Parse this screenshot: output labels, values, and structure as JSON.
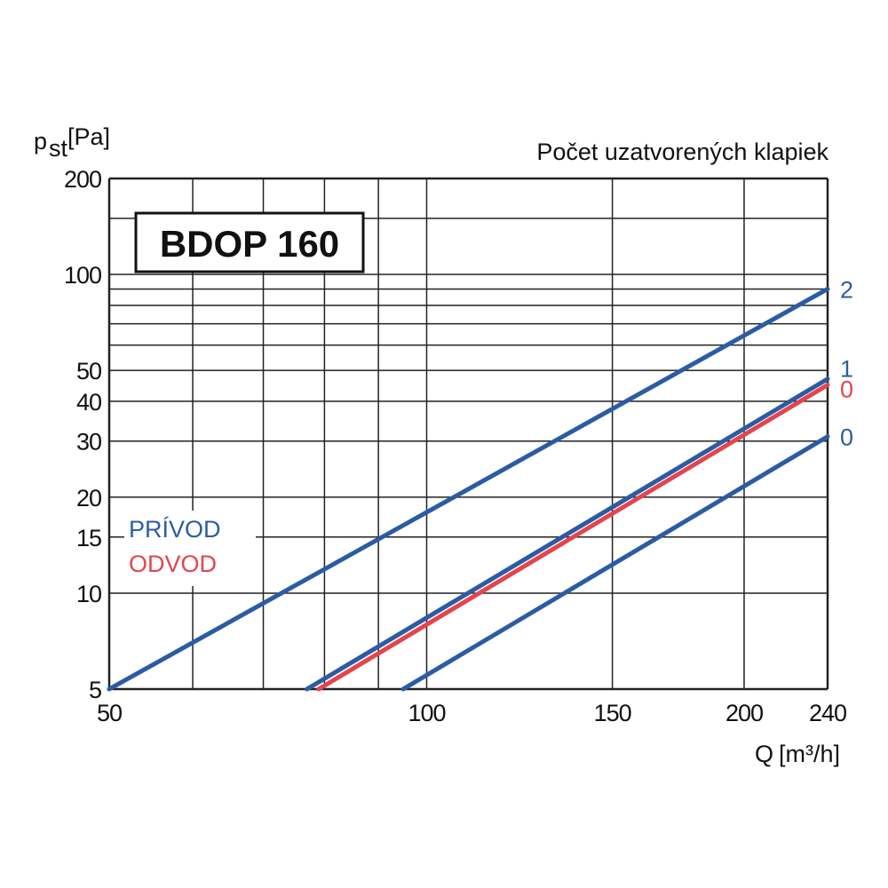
{
  "chart_data": {
    "type": "line",
    "title": "BDOP 160",
    "subtitle": "Počet uzatvorených klapiek",
    "xlabel": "Q",
    "xunit": "[m³/h]",
    "ylabel": "p",
    "ylabel_sub": "st",
    "yunit": "[Pa]",
    "xscale": "log",
    "yscale": "log",
    "xlim": [
      50,
      240
    ],
    "ylim": [
      5,
      200
    ],
    "x_ticks": [
      50,
      100,
      150,
      200,
      240
    ],
    "x_grid": [
      50,
      60,
      70,
      80,
      90,
      100,
      150,
      200,
      240
    ],
    "y_ticks": [
      5,
      10,
      15,
      20,
      30,
      40,
      50,
      100,
      200
    ],
    "y_grid": [
      5,
      10,
      15,
      20,
      30,
      40,
      50,
      60,
      70,
      80,
      90,
      100,
      150,
      200
    ],
    "grid": true,
    "legend": [
      {
        "label": "PRÍVOD",
        "color": "#2b5ca3"
      },
      {
        "label": "ODVOD",
        "color": "#e3454f"
      }
    ],
    "legend_position": "left",
    "series": [
      {
        "label": "2",
        "group": "PRÍVOD",
        "color": "#2b5ca3",
        "points": [
          [
            50,
            5
          ],
          [
            240,
            90
          ]
        ]
      },
      {
        "label": "1",
        "group": "PRÍVOD",
        "color": "#2b5ca3",
        "points": [
          [
            77,
            5
          ],
          [
            240,
            47
          ]
        ]
      },
      {
        "label": "0",
        "group": "ODVOD",
        "color": "#e3454f",
        "points": [
          [
            79,
            5
          ],
          [
            240,
            45
          ]
        ]
      },
      {
        "label": "0",
        "group": "PRÍVOD",
        "color": "#2b5ca3",
        "points": [
          [
            95,
            5
          ],
          [
            240,
            31
          ]
        ]
      }
    ]
  }
}
